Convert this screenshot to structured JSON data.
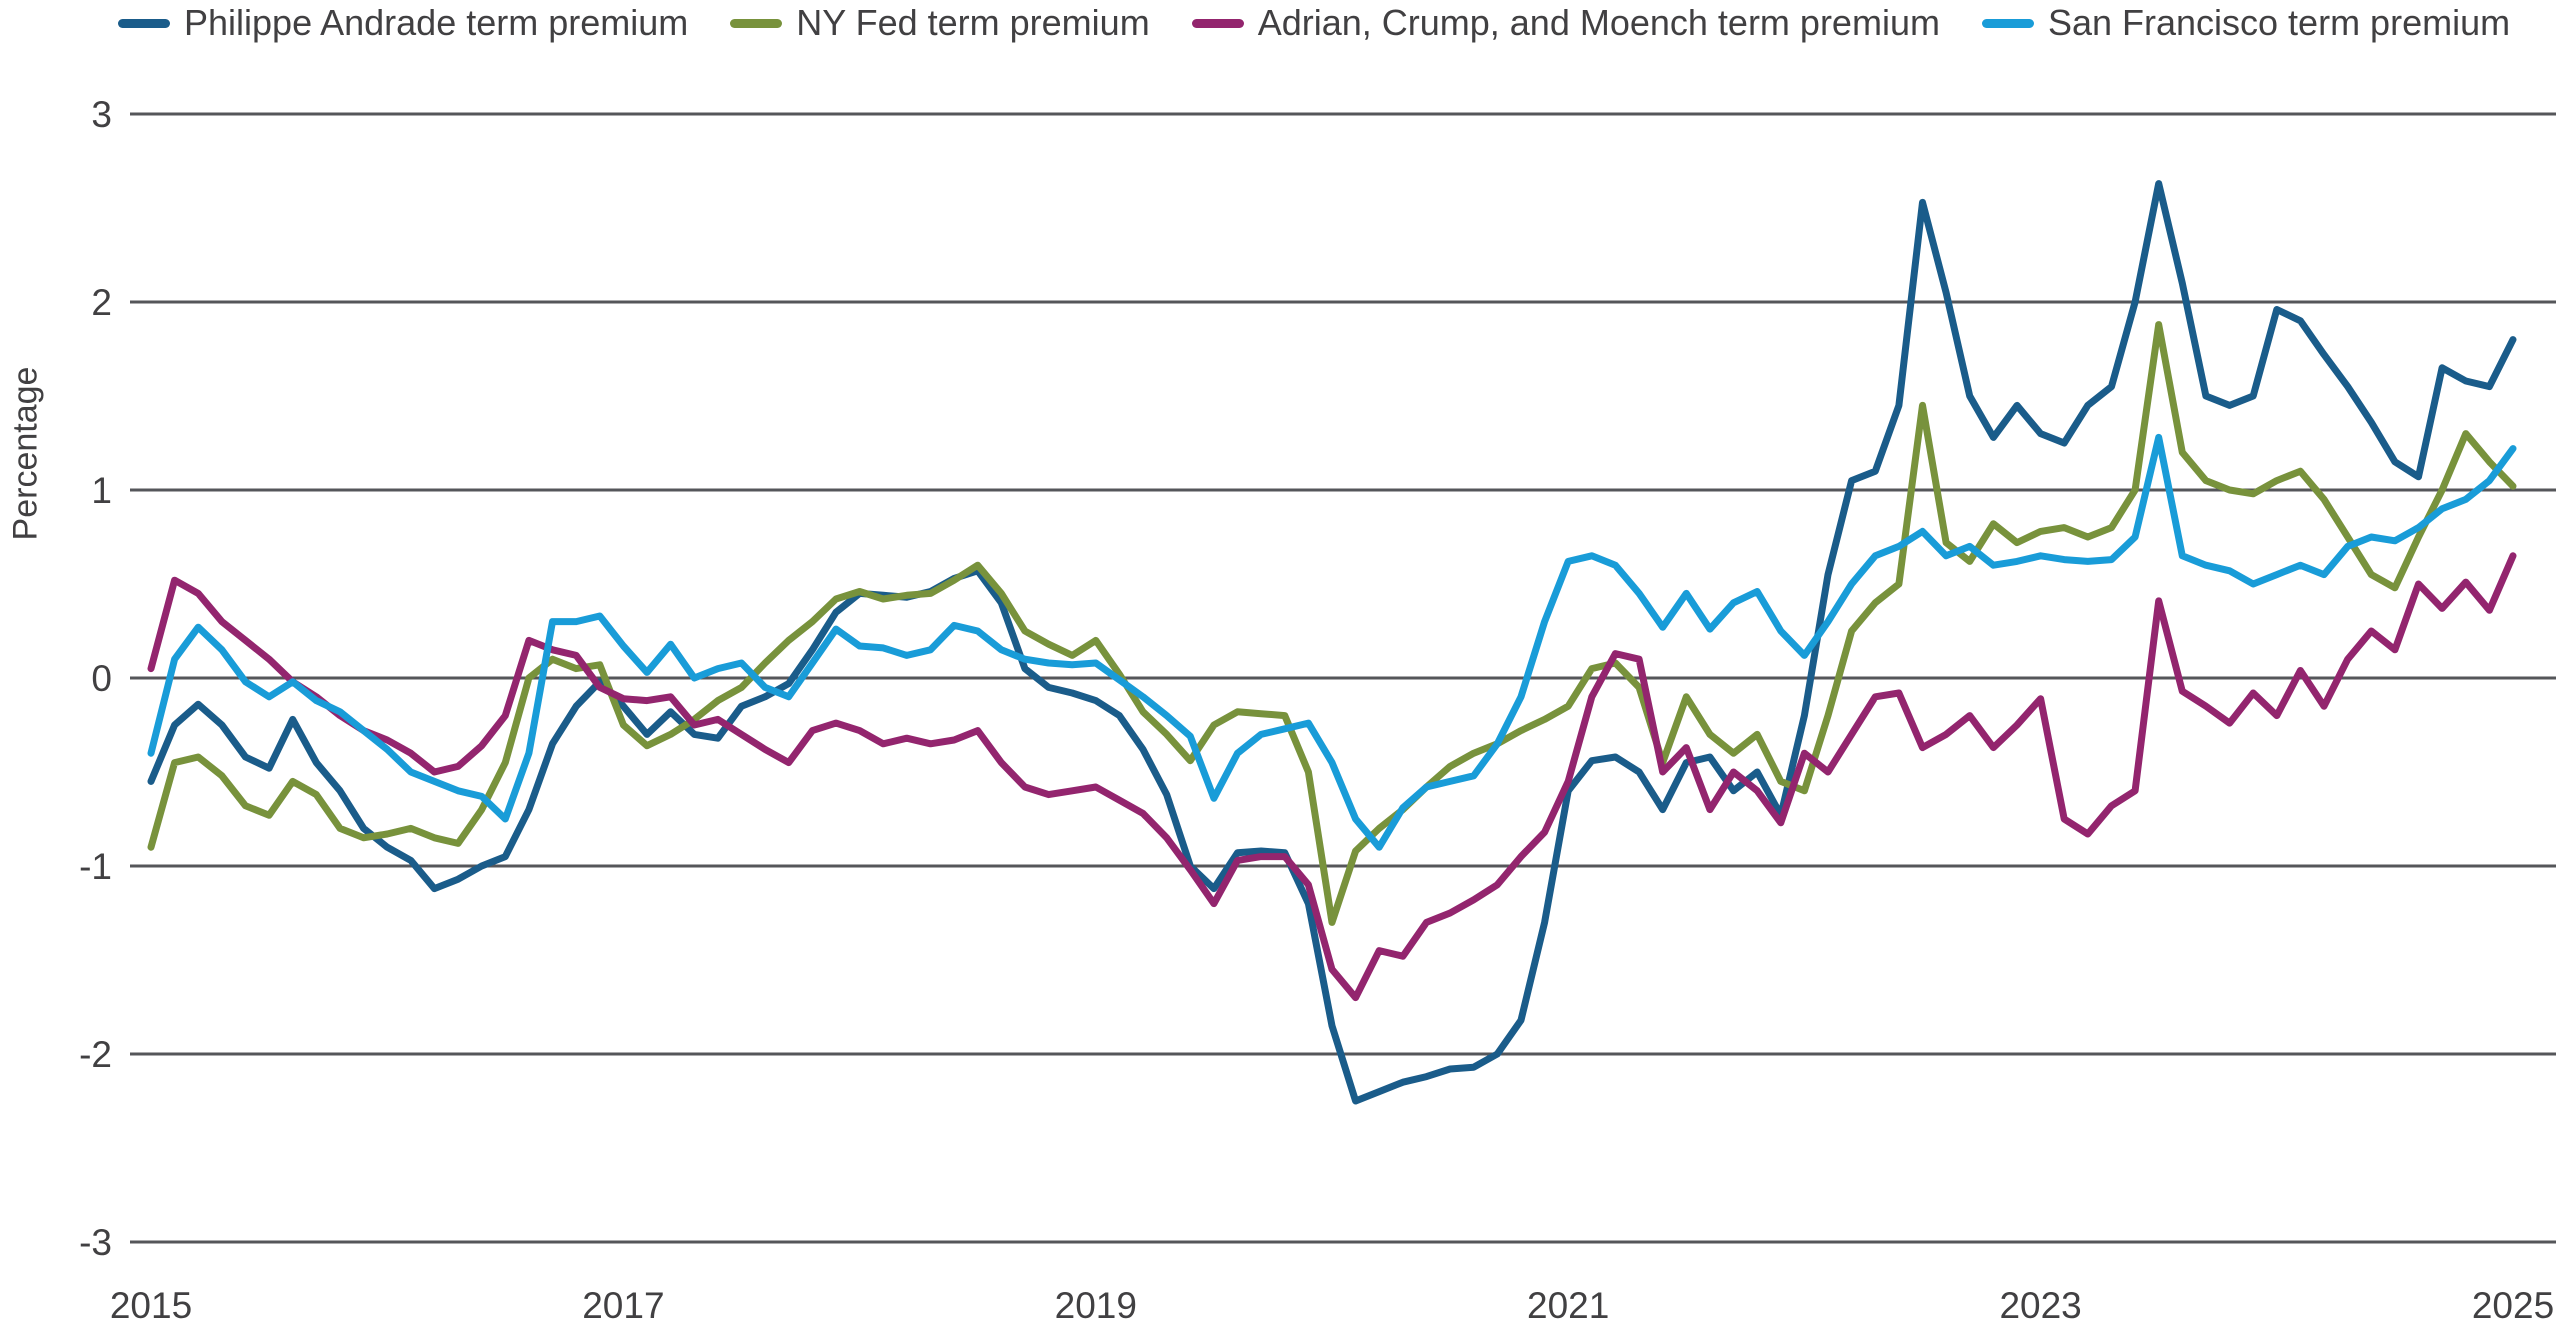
{
  "chart_data": {
    "type": "line",
    "title": "",
    "xlabel": "",
    "ylabel": "Percentage",
    "ylim": [
      -3,
      3
    ],
    "xlim": [
      2015,
      2025
    ],
    "grid": "horizontal",
    "gridline_color": "#55565a",
    "legend_position": "top",
    "y_ticks": [
      3,
      2,
      1,
      0,
      -1,
      -2,
      -3
    ],
    "x_ticks": [
      2015,
      2017,
      2019,
      2021,
      2023,
      2025
    ],
    "x": [
      2015.0,
      2015.1,
      2015.2,
      2015.3,
      2015.4,
      2015.5,
      2015.6,
      2015.7,
      2015.8,
      2015.9,
      2016.0,
      2016.1,
      2016.2,
      2016.3,
      2016.4,
      2016.5,
      2016.6,
      2016.7,
      2016.8,
      2016.9,
      2017.0,
      2017.1,
      2017.2,
      2017.3,
      2017.4,
      2017.5,
      2017.6,
      2017.7,
      2017.8,
      2017.9,
      2018.0,
      2018.1,
      2018.2,
      2018.3,
      2018.4,
      2018.5,
      2018.6,
      2018.7,
      2018.8,
      2018.9,
      2019.0,
      2019.1,
      2019.2,
      2019.3,
      2019.4,
      2019.5,
      2019.6,
      2019.7,
      2019.8,
      2019.9,
      2020.0,
      2020.1,
      2020.2,
      2020.3,
      2020.4,
      2020.5,
      2020.6,
      2020.7,
      2020.8,
      2020.9,
      2021.0,
      2021.1,
      2021.2,
      2021.3,
      2021.4,
      2021.5,
      2021.6,
      2021.7,
      2021.8,
      2021.9,
      2022.0,
      2022.1,
      2022.2,
      2022.3,
      2022.4,
      2022.5,
      2022.6,
      2022.7,
      2022.8,
      2022.9,
      2023.0,
      2023.1,
      2023.2,
      2023.3,
      2023.4,
      2023.5,
      2023.6,
      2023.7,
      2023.8,
      2023.9,
      2024.0,
      2024.1,
      2024.2,
      2024.3,
      2024.4,
      2024.5,
      2024.6,
      2024.7,
      2024.8,
      2024.9,
      2025.0
    ],
    "series": [
      {
        "name": "Philippe Andrade term premium",
        "color": "#1a5c8a",
        "values": [
          -0.55,
          -0.25,
          -0.14,
          -0.25,
          -0.42,
          -0.48,
          -0.22,
          -0.45,
          -0.6,
          -0.8,
          -0.9,
          -0.97,
          -1.12,
          -1.07,
          -1.0,
          -0.95,
          -0.7,
          -0.35,
          -0.15,
          -0.02,
          -0.15,
          -0.3,
          -0.18,
          -0.3,
          -0.32,
          -0.15,
          -0.1,
          -0.03,
          0.15,
          0.35,
          0.45,
          0.44,
          0.43,
          0.46,
          0.53,
          0.57,
          0.4,
          0.05,
          -0.05,
          -0.08,
          -0.12,
          -0.2,
          -0.38,
          -0.62,
          -1.0,
          -1.12,
          -0.93,
          -0.92,
          -0.93,
          -1.2,
          -1.85,
          -2.25,
          -2.2,
          -2.15,
          -2.12,
          -2.08,
          -2.07,
          -2.0,
          -1.82,
          -1.3,
          -0.6,
          -0.44,
          -0.42,
          -0.5,
          -0.7,
          -0.45,
          -0.42,
          -0.6,
          -0.5,
          -0.73,
          -0.2,
          0.55,
          1.05,
          1.1,
          1.45,
          2.53,
          2.05,
          1.5,
          1.28,
          1.45,
          1.3,
          1.25,
          1.45,
          1.55,
          2.0,
          2.63,
          2.1,
          1.5,
          1.45,
          1.5,
          1.96,
          1.9,
          1.72,
          1.55,
          1.36,
          1.15,
          1.07,
          1.65,
          1.58,
          1.55,
          1.8
        ]
      },
      {
        "name": "NY Fed term premium",
        "color": "#78923c",
        "values": [
          -0.9,
          -0.45,
          -0.42,
          -0.52,
          -0.68,
          -0.73,
          -0.55,
          -0.62,
          -0.8,
          -0.85,
          -0.83,
          -0.8,
          -0.85,
          -0.88,
          -0.7,
          -0.45,
          0.0,
          0.1,
          0.05,
          0.07,
          -0.25,
          -0.36,
          -0.3,
          -0.22,
          -0.12,
          -0.05,
          0.08,
          0.2,
          0.3,
          0.42,
          0.46,
          0.42,
          0.44,
          0.45,
          0.52,
          0.6,
          0.45,
          0.25,
          0.18,
          0.12,
          0.2,
          0.02,
          -0.18,
          -0.3,
          -0.44,
          -0.25,
          -0.18,
          -0.19,
          -0.2,
          -0.5,
          -1.3,
          -0.92,
          -0.8,
          -0.7,
          -0.58,
          -0.47,
          -0.4,
          -0.35,
          -0.28,
          -0.22,
          -0.15,
          0.05,
          0.08,
          -0.05,
          -0.45,
          -0.1,
          -0.3,
          -0.4,
          -0.3,
          -0.55,
          -0.6,
          -0.2,
          0.25,
          0.4,
          0.5,
          1.45,
          0.72,
          0.62,
          0.82,
          0.72,
          0.78,
          0.8,
          0.75,
          0.8,
          1.0,
          1.88,
          1.2,
          1.05,
          1.0,
          0.98,
          1.05,
          1.1,
          0.95,
          0.75,
          0.55,
          0.48,
          0.75,
          1.0,
          1.3,
          1.15,
          1.02
        ]
      },
      {
        "name": "Adrian, Crump, and Moench term premium",
        "color": "#93256e",
        "values": [
          0.05,
          0.52,
          0.45,
          0.3,
          0.2,
          0.1,
          -0.02,
          -0.1,
          -0.2,
          -0.28,
          -0.33,
          -0.4,
          -0.5,
          -0.47,
          -0.36,
          -0.2,
          0.2,
          0.15,
          0.12,
          -0.05,
          -0.11,
          -0.12,
          -0.1,
          -0.25,
          -0.22,
          -0.3,
          -0.38,
          -0.45,
          -0.28,
          -0.24,
          -0.28,
          -0.35,
          -0.32,
          -0.35,
          -0.33,
          -0.28,
          -0.45,
          -0.58,
          -0.62,
          -0.6,
          -0.58,
          -0.65,
          -0.72,
          -0.85,
          -1.02,
          -1.2,
          -0.97,
          -0.95,
          -0.95,
          -1.1,
          -1.55,
          -1.7,
          -1.45,
          -1.48,
          -1.3,
          -1.25,
          -1.18,
          -1.1,
          -0.95,
          -0.82,
          -0.55,
          -0.1,
          0.13,
          0.1,
          -0.5,
          -0.37,
          -0.7,
          -0.5,
          -0.6,
          -0.77,
          -0.4,
          -0.5,
          -0.3,
          -0.1,
          -0.08,
          -0.37,
          -0.3,
          -0.2,
          -0.37,
          -0.25,
          -0.11,
          -0.75,
          -0.83,
          -0.68,
          -0.6,
          0.41,
          -0.07,
          -0.15,
          -0.24,
          -0.08,
          -0.2,
          0.04,
          -0.15,
          0.1,
          0.25,
          0.15,
          0.5,
          0.37,
          0.51,
          0.36,
          0.65
        ]
      },
      {
        "name": "San Francisco term premium",
        "color": "#199cd8",
        "values": [
          -0.4,
          0.1,
          0.27,
          0.15,
          -0.02,
          -0.1,
          -0.02,
          -0.12,
          -0.18,
          -0.28,
          -0.38,
          -0.5,
          -0.55,
          -0.6,
          -0.63,
          -0.75,
          -0.4,
          0.3,
          0.3,
          0.33,
          0.17,
          0.03,
          0.18,
          0.0,
          0.05,
          0.08,
          -0.05,
          -0.1,
          0.08,
          0.26,
          0.17,
          0.16,
          0.12,
          0.15,
          0.28,
          0.25,
          0.15,
          0.1,
          0.08,
          0.07,
          0.08,
          -0.01,
          -0.1,
          -0.2,
          -0.31,
          -0.64,
          -0.4,
          -0.3,
          -0.27,
          -0.24,
          -0.45,
          -0.75,
          -0.9,
          -0.69,
          -0.58,
          -0.55,
          -0.52,
          -0.35,
          -0.1,
          0.3,
          0.62,
          0.65,
          0.6,
          0.45,
          0.27,
          0.45,
          0.26,
          0.4,
          0.46,
          0.25,
          0.12,
          0.3,
          0.5,
          0.65,
          0.7,
          0.78,
          0.65,
          0.7,
          0.6,
          0.62,
          0.65,
          0.63,
          0.62,
          0.63,
          0.75,
          1.28,
          0.65,
          0.6,
          0.57,
          0.5,
          0.55,
          0.6,
          0.55,
          0.7,
          0.75,
          0.73,
          0.8,
          0.9,
          0.95,
          1.05,
          1.22
        ]
      }
    ]
  }
}
